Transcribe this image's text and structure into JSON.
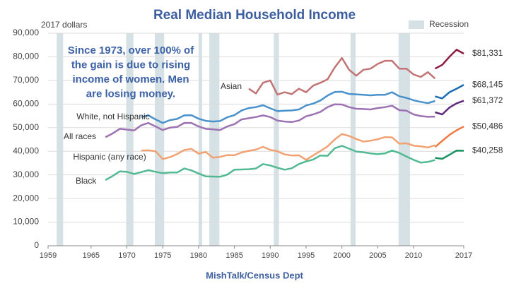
{
  "chart_data": {
    "type": "line",
    "title": "Real Median Household Income",
    "y_unit_label": "2017 dollars",
    "source": "MishTalk/Census Dept",
    "annotation": [
      "Since 1973, over 100% of",
      "the gain is due to rising",
      "income of women. Men",
      "are losing money."
    ],
    "recession_label": "Recession",
    "recession_color": "#d5e1e4",
    "recessions": [
      [
        1960.2,
        1961.1
      ],
      [
        1969.9,
        1970.9
      ],
      [
        1973.9,
        1975.2
      ],
      [
        1980.0,
        1980.5
      ],
      [
        1981.5,
        1982.9
      ],
      [
        1990.5,
        1991.2
      ],
      [
        2001.2,
        2001.9
      ],
      [
        2007.9,
        2009.5
      ]
    ],
    "xlim": [
      1959,
      2017
    ],
    "xticks": [
      1959,
      1965,
      1970,
      1975,
      1980,
      1985,
      1990,
      1995,
      2000,
      2005,
      2010,
      2017
    ],
    "ylim": [
      0,
      90000
    ],
    "yticks": [
      0,
      {
        "value": 10000,
        "label": "10,000"
      },
      {
        "value": 20000,
        "label": "20,000"
      },
      {
        "value": 30000,
        "label": "30,000"
      },
      {
        "value": 40000,
        "label": "40,000"
      },
      {
        "value": 50000,
        "label": "50,000"
      },
      {
        "value": 60000,
        "label": "60,000"
      },
      {
        "value": 70000,
        "label": "70,000"
      },
      {
        "value": 80000,
        "label": "80,000"
      },
      {
        "value": {
          "value": 90000
        },
        "label": "90,000"
      }
    ],
    "grid": true,
    "series": [
      {
        "name": "Asian",
        "color": "#c27474",
        "x": [
          1987,
          1988,
          1989,
          1990,
          1991,
          1992,
          1993,
          1994,
          1995,
          1996,
          1997,
          1998,
          1999,
          2000,
          2001,
          2002,
          2003,
          2004,
          2005,
          2006,
          2007,
          2008,
          2009,
          2010,
          2011,
          2012,
          2013
        ],
        "values": [
          66500,
          64500,
          69000,
          70000,
          64000,
          65000,
          64200,
          66500,
          65000,
          67800,
          69000,
          70500,
          75500,
          79500,
          74500,
          72000,
          74500,
          75000,
          77000,
          78300,
          78300,
          75000,
          75000,
          72500,
          71500,
          73500,
          70800
        ],
        "recent": {
          "color": "#8c1a40",
          "x": [
            2013,
            2014,
            2015,
            2016,
            2017
          ],
          "values": [
            75000,
            76600,
            80000,
            83000,
            81331
          ],
          "value_labels": [
            null,
            null,
            null,
            null,
            "$81,331"
          ]
        }
      },
      {
        "name": "White, not Hispanic",
        "color": "#4a92cc",
        "x": [
          1972,
          1973,
          1974,
          1975,
          1976,
          1977,
          1978,
          1979,
          1980,
          1981,
          1982,
          1983,
          1984,
          1985,
          1986,
          1987,
          1988,
          1989,
          1990,
          1991,
          1992,
          1993,
          1994,
          1995,
          1996,
          1997,
          1998,
          1999,
          2000,
          2001,
          2002,
          2003,
          2004,
          2005,
          2006,
          2007,
          2008,
          2009,
          2010,
          2011,
          2012,
          2013
        ],
        "values": [
          54500,
          55200,
          53500,
          52000,
          53200,
          53700,
          55200,
          55300,
          53800,
          52900,
          52600,
          52800,
          54400,
          55300,
          57300,
          58300,
          58700,
          59500,
          58200,
          57000,
          57200,
          57300,
          57700,
          59400,
          60200,
          61500,
          63600,
          65100,
          65200,
          64300,
          64100,
          63900,
          63700,
          63900,
          63900,
          65000,
          63300,
          62600,
          61600,
          60900,
          60400,
          61300
        ],
        "recent": {
          "color": "#1a6cb2",
          "x": [
            2013,
            2014,
            2015,
            2016,
            2017
          ],
          "values": [
            63200,
            62400,
            65000,
            66500,
            68145
          ],
          "value_labels": [
            null,
            null,
            null,
            null,
            "$68,145"
          ]
        }
      },
      {
        "name": "All races",
        "color": "#9c72b2",
        "x": [
          1967,
          1968,
          1969,
          1970,
          1971,
          1972,
          1973,
          1974,
          1975,
          1976,
          1977,
          1978,
          1979,
          1980,
          1981,
          1982,
          1983,
          1984,
          1985,
          1986,
          1987,
          1988,
          1989,
          1990,
          1991,
          1992,
          1993,
          1994,
          1995,
          1996,
          1997,
          1998,
          1999,
          2000,
          2001,
          2002,
          2003,
          2004,
          2005,
          2006,
          2007,
          2008,
          2009,
          2010,
          2011,
          2012,
          2013
        ],
        "values": [
          46000,
          47500,
          49500,
          49200,
          48800,
          51000,
          52000,
          50500,
          49000,
          50000,
          50300,
          52000,
          52000,
          50500,
          49500,
          49300,
          49000,
          50500,
          51500,
          53500,
          54000,
          54500,
          55200,
          54500,
          53000,
          52600,
          52400,
          53000,
          54800,
          55600,
          56700,
          58700,
          59900,
          59800,
          58700,
          58000,
          57900,
          57700,
          58300,
          58700,
          59300,
          57400,
          57200,
          55600,
          54900,
          54600,
          54700
        ],
        "recent": {
          "color": "#5e2a7c",
          "x": [
            2013,
            2014,
            2015,
            2016,
            2017
          ],
          "values": [
            56500,
            55600,
            58500,
            60300,
            61372
          ],
          "value_labels": [
            null,
            null,
            null,
            null,
            "$61,372"
          ]
        }
      },
      {
        "name": "Hispanic (any race)",
        "color": "#f2a272",
        "x": [
          1972,
          1973,
          1974,
          1975,
          1976,
          1977,
          1978,
          1979,
          1980,
          1981,
          1982,
          1983,
          1984,
          1985,
          1986,
          1987,
          1988,
          1989,
          1990,
          1991,
          1992,
          1993,
          1994,
          1995,
          1996,
          1997,
          1998,
          1999,
          2000,
          2001,
          2002,
          2003,
          2004,
          2005,
          2006,
          2007,
          2008,
          2009,
          2010,
          2011,
          2012,
          2013
        ],
        "values": [
          40300,
          40400,
          40000,
          36700,
          37500,
          38800,
          40500,
          41000,
          39000,
          39700,
          37300,
          37600,
          38400,
          38300,
          39500,
          40200,
          40700,
          41900,
          40600,
          40000,
          38700,
          38200,
          38300,
          36400,
          38300,
          40100,
          42100,
          45000,
          47300,
          46500,
          45200,
          44100,
          44500,
          45100,
          46000,
          45900,
          43200,
          43400,
          42400,
          42100,
          41600,
          42600
        ],
        "recent": {
          "color": "#f07a42",
          "x": [
            2013,
            2014,
            2015,
            2016,
            2017
          ],
          "values": [
            41800,
            44400,
            46900,
            48900,
            50486
          ],
          "value_labels": [
            null,
            null,
            null,
            null,
            "$50,486"
          ]
        }
      },
      {
        "name": "Black",
        "color": "#52ba92",
        "x": [
          1967,
          1968,
          1969,
          1970,
          1971,
          1972,
          1973,
          1974,
          1975,
          1976,
          1977,
          1978,
          1979,
          1980,
          1981,
          1982,
          1983,
          1984,
          1985,
          1986,
          1987,
          1988,
          1989,
          1990,
          1991,
          1992,
          1993,
          1994,
          1995,
          1996,
          1997,
          1998,
          1999,
          2000,
          2001,
          2002,
          2003,
          2004,
          2005,
          2006,
          2007,
          2008,
          2009,
          2010,
          2011,
          2012,
          2013
        ],
        "values": [
          27800,
          29500,
          31500,
          31300,
          30400,
          31200,
          32000,
          31300,
          30700,
          31000,
          31000,
          32700,
          31900,
          30600,
          29400,
          29300,
          29200,
          30100,
          32200,
          32300,
          32400,
          32700,
          34600,
          34000,
          33000,
          32200,
          32800,
          34600,
          35700,
          36500,
          38200,
          38100,
          41300,
          42300,
          41100,
          39900,
          39600,
          39100,
          38800,
          39100,
          40300,
          39300,
          37800,
          36400,
          35200,
          35500,
          36300
        ],
        "recent": {
          "color": "#1a9262",
          "x": [
            2013,
            2014,
            2015,
            2016,
            2017
          ],
          "values": [
            37200,
            36800,
            38500,
            40300,
            40258
          ],
          "value_labels": [
            null,
            null,
            null,
            null,
            "$40,258"
          ]
        }
      }
    ]
  }
}
